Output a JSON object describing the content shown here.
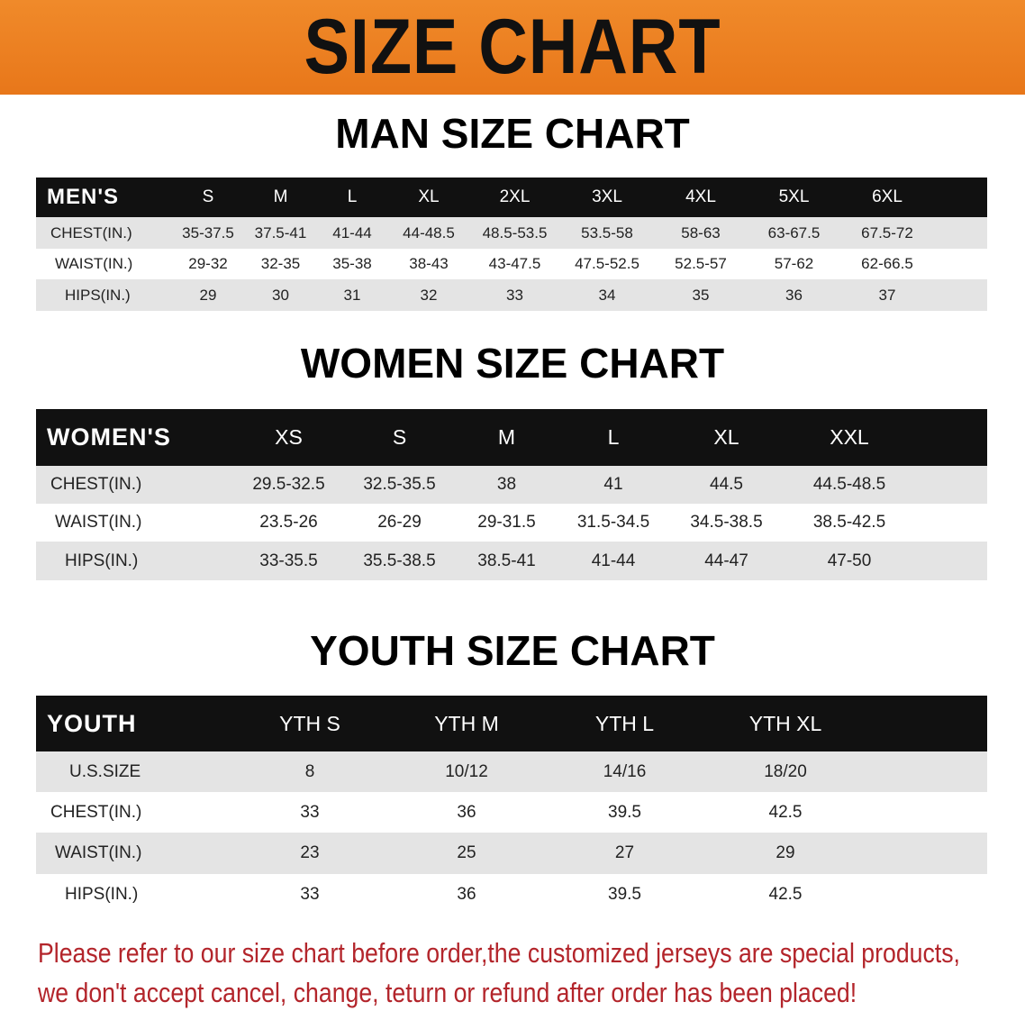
{
  "banner_title": "SIZE CHART",
  "men": {
    "title": "MAN SIZE CHART",
    "header": "MEN'S",
    "sizes": [
      "S",
      "M",
      "L",
      "XL",
      "2XL",
      "3XL",
      "4XL",
      "5XL",
      "6XL"
    ],
    "rows": [
      {
        "label": "CHEST(IN.)",
        "values": [
          "35-37.5",
          "37.5-41",
          "41-44",
          "44-48.5",
          "48.5-53.5",
          "53.5-58",
          "58-63",
          "63-67.5",
          "67.5-72"
        ]
      },
      {
        "label": "WAIST(IN.)",
        "values": [
          "29-32",
          "32-35",
          "35-38",
          "38-43",
          "43-47.5",
          "47.5-52.5",
          "52.5-57",
          "57-62",
          "62-66.5"
        ]
      },
      {
        "label": "HIPS(IN.)",
        "values": [
          "29",
          "30",
          "31",
          "32",
          "33",
          "34",
          "35",
          "36",
          "37"
        ]
      }
    ]
  },
  "women": {
    "title": "WOMEN SIZE CHART",
    "header": "WOMEN'S",
    "sizes": [
      "XS",
      "S",
      "M",
      "L",
      "XL",
      "XXL"
    ],
    "rows": [
      {
        "label": "CHEST(IN.)",
        "values": [
          "29.5-32.5",
          "32.5-35.5",
          "38",
          "41",
          "44.5",
          "44.5-48.5"
        ]
      },
      {
        "label": "WAIST(IN.)",
        "values": [
          "23.5-26",
          "26-29",
          "29-31.5",
          "31.5-34.5",
          "34.5-38.5",
          "38.5-42.5"
        ]
      },
      {
        "label": "HIPS(IN.)",
        "values": [
          "33-35.5",
          "35.5-38.5",
          "38.5-41",
          "41-44",
          "44-47",
          "47-50"
        ]
      }
    ]
  },
  "youth": {
    "title": "YOUTH SIZE CHART",
    "header": "YOUTH",
    "sizes": [
      "YTH S",
      "YTH M",
      "YTH L",
      "YTH XL"
    ],
    "rows": [
      {
        "label": "U.S.SIZE",
        "values": [
          "8",
          "10/12",
          "14/16",
          "18/20"
        ]
      },
      {
        "label": "CHEST(IN.)",
        "values": [
          "33",
          "36",
          "39.5",
          "42.5"
        ]
      },
      {
        "label": "WAIST(IN.)",
        "values": [
          "23",
          "25",
          "27",
          "29"
        ]
      },
      {
        "label": "HIPS(IN.)",
        "values": [
          "33",
          "36",
          "39.5",
          "42.5"
        ]
      }
    ]
  },
  "note": {
    "line1": "Please refer to our size chart before order,the customized jerseys are special products,",
    "line2": "we don't accept cancel, change, teturn or refund after order has been placed!"
  },
  "colors": {
    "banner": "#ec7f20",
    "header_bg": "#111111",
    "alt_row": "#e4e4e4",
    "note": "#b3252b"
  }
}
